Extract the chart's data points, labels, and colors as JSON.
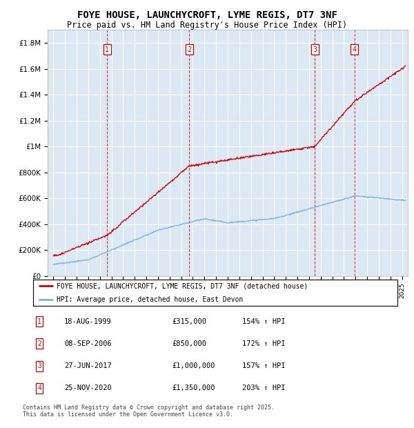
{
  "title": "FOYE HOUSE, LAUNCHYCROFT, LYME REGIS, DT7 3NF",
  "subtitle": "Price paid vs. HM Land Registry's House Price Index (HPI)",
  "background_color": "#dce9f5",
  "plot_bg_color": "#dce9f5",
  "ylim": [
    0,
    1900000
  ],
  "yticks": [
    0,
    200000,
    400000,
    600000,
    800000,
    1000000,
    1200000,
    1400000,
    1600000,
    1800000
  ],
  "ytick_labels": [
    "£0",
    "£200K",
    "£400K",
    "£600K",
    "£800K",
    "£1M",
    "£1.2M",
    "£1.4M",
    "£1.6M",
    "£1.8M"
  ],
  "transactions": [
    {
      "num": 1,
      "date": "18-AUG-1999",
      "price": 315000,
      "pct": "154%",
      "x_year": 1999.63
    },
    {
      "num": 2,
      "date": "08-SEP-2006",
      "price": 850000,
      "pct": "172%",
      "x_year": 2006.69
    },
    {
      "num": 3,
      "date": "27-JUN-2017",
      "price": 1000000,
      "pct": "157%",
      "x_year": 2017.49
    },
    {
      "num": 4,
      "date": "25-NOV-2020",
      "price": 1350000,
      "pct": "203%",
      "x_year": 2020.9
    }
  ],
  "legend_label_red": "FOYE HOUSE, LAUNCHYCROFT, LYME REGIS, DT7 3NF (detached house)",
  "legend_label_blue": "HPI: Average price, detached house, East Devon",
  "footer": "Contains HM Land Registry data © Crown copyright and database right 2025.\nThis data is licensed under the Open Government Licence v3.0.",
  "red_color": "#cc0000",
  "blue_color": "#7bafd4",
  "dashed_color": "#cc0000",
  "xlim_start": 1994.5,
  "xlim_end": 2025.5
}
